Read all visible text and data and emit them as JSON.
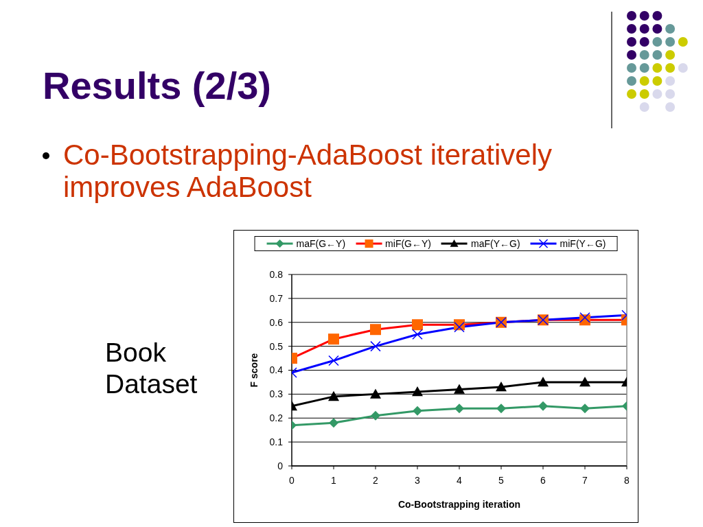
{
  "chart_data": {
    "type": "line",
    "title": "Results (2/3)",
    "annotations": [
      "Co-Bootstrapping-AdaBoost iteratively improves AdaBoost",
      "Book Dataset"
    ],
    "xlabel": "Co-Bootstrapping iteration",
    "ylabel": "F score",
    "x": [
      0,
      1,
      2,
      3,
      4,
      5,
      6,
      7,
      8
    ],
    "xlim": [
      0,
      8
    ],
    "xticks": [
      0,
      1,
      2,
      3,
      4,
      5,
      6,
      7,
      8
    ],
    "ylim": [
      0,
      0.8
    ],
    "yticks": [
      0,
      0.1,
      0.2,
      0.3,
      0.4,
      0.5,
      0.6,
      0.7,
      0.8
    ],
    "grid": "y",
    "legend": "top",
    "series": [
      {
        "name": "maF(G←Y)",
        "color": "#339966",
        "marker": "diamond",
        "values": [
          0.17,
          0.18,
          0.21,
          0.23,
          0.24,
          0.24,
          0.25,
          0.24,
          0.25
        ]
      },
      {
        "name": "miF(G←Y)",
        "color": "#ff0000",
        "colors": [
          "#ff6600",
          "#ff6600",
          "#ff6600",
          "#ff6600",
          "#ff6600",
          "#ff6600",
          "#ff6600",
          "#ff6600",
          "#ff6600"
        ],
        "marker": "square",
        "values": [
          0.45,
          0.53,
          0.57,
          0.59,
          0.59,
          0.6,
          0.61,
          0.61,
          0.61
        ]
      },
      {
        "name": "maF(Y←G)",
        "color": "#000000",
        "marker": "triangle",
        "values": [
          0.25,
          0.29,
          0.3,
          0.31,
          0.32,
          0.33,
          0.35,
          0.35,
          0.35
        ]
      },
      {
        "name": "miF(Y←G)",
        "color": "#0000ff",
        "marker": "cross",
        "values": [
          0.39,
          0.44,
          0.5,
          0.55,
          0.58,
          0.6,
          0.61,
          0.62,
          0.63
        ]
      }
    ]
  }
}
